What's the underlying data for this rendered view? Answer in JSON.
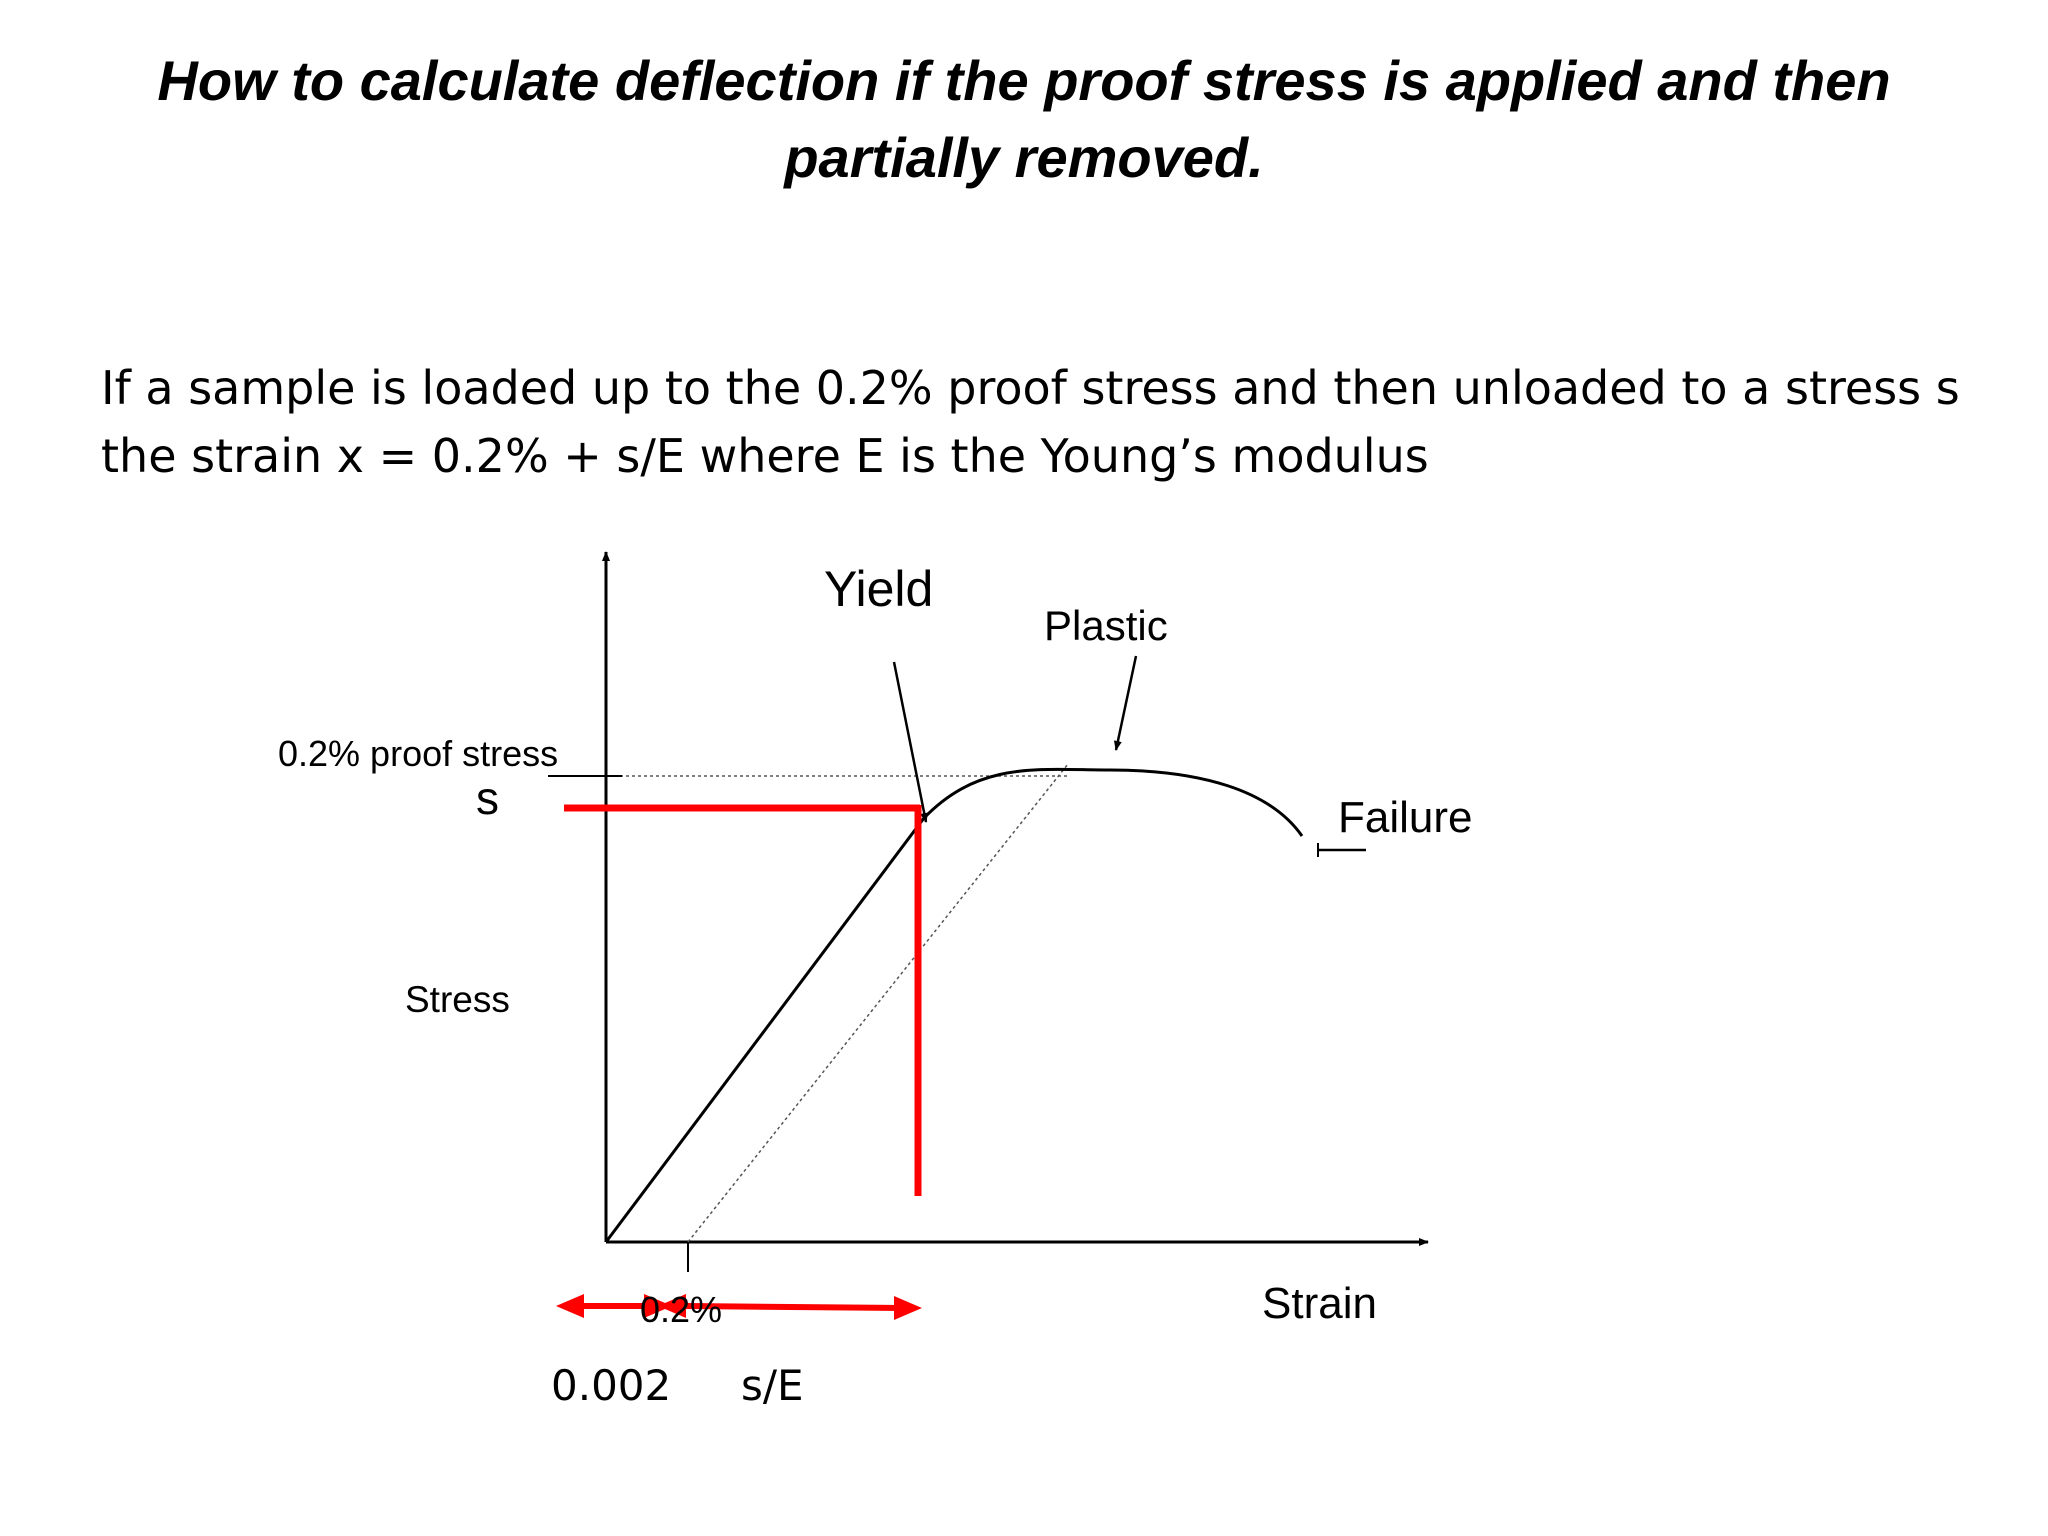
{
  "slide": {
    "title_line1": "How to calculate deflection if the proof stress is applied and then",
    "title_line2": "partially removed.",
    "body_line1": "If a sample is loaded up to the 0.2% proof stress and then unloaded to a stress s",
    "body_line2": "the strain x = 0.2% + s/E   where E is the Young’s modulus"
  },
  "diagram": {
    "labels": {
      "yield": "Yield",
      "plastic": "Plastic",
      "proof_stress": "0.2% proof stress",
      "s": "s",
      "failure": "Failure",
      "stress": "Stress",
      "strain": "Strain",
      "offset": "0.2%",
      "offset_value": "0.002",
      "elastic_strain": "s/E"
    },
    "colors": {
      "curve": "#000000",
      "highlight": "#ff0000",
      "guide": "#555555"
    }
  }
}
